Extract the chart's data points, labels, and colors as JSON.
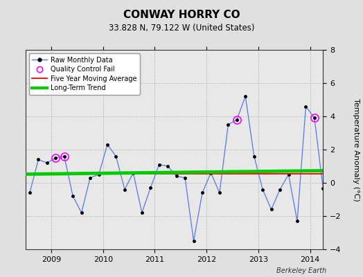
{
  "title": "CONWAY HORRY CO",
  "subtitle": "33.828 N, 79.122 W (United States)",
  "ylabel": "Temperature Anomaly (°C)",
  "credit": "Berkeley Earth",
  "ylim": [
    -4,
    8
  ],
  "yticks": [
    -4,
    -2,
    0,
    2,
    4,
    6,
    8
  ],
  "xlim": [
    2008.5,
    2014.25
  ],
  "xticks": [
    2009,
    2010,
    2011,
    2012,
    2013,
    2014
  ],
  "background_color": "#e0e0e0",
  "plot_bg_color": "#e8e8e8",
  "raw_line_color": "#5577ee",
  "raw_marker_color": "#000000",
  "qc_fail_color": "#ff00ff",
  "five_year_color": "#ff0000",
  "trend_color": "#00cc00",
  "months": [
    2008.583,
    2008.75,
    2008.917,
    2009.083,
    2009.25,
    2009.417,
    2009.583,
    2009.75,
    2009.917,
    2010.083,
    2010.25,
    2010.417,
    2010.583,
    2010.75,
    2010.917,
    2011.083,
    2011.25,
    2011.417,
    2011.583,
    2011.75,
    2011.917,
    2012.083,
    2012.25,
    2012.417,
    2012.583,
    2012.75,
    2012.917,
    2013.083,
    2013.25,
    2013.417,
    2013.583,
    2013.75,
    2013.917,
    2014.083,
    2014.25
  ],
  "values": [
    -0.6,
    1.4,
    1.2,
    1.5,
    1.6,
    -0.8,
    -1.8,
    0.3,
    0.5,
    2.3,
    1.6,
    -0.4,
    0.6,
    -1.8,
    -0.3,
    1.1,
    1.0,
    0.4,
    0.3,
    -3.5,
    -0.6,
    0.6,
    -0.6,
    3.5,
    3.8,
    5.2,
    1.6,
    -0.4,
    -1.6,
    -0.4,
    0.5,
    -2.3,
    4.6,
    3.9,
    -0.35
  ],
  "qc_fail_months": [
    2009.083,
    2009.25,
    2012.583,
    2014.083
  ],
  "qc_fail_values": [
    1.5,
    1.6,
    3.8,
    3.9
  ],
  "five_year_y": 0.55,
  "trend_x": [
    2008.5,
    2014.25
  ],
  "trend_y": [
    0.52,
    0.73
  ]
}
